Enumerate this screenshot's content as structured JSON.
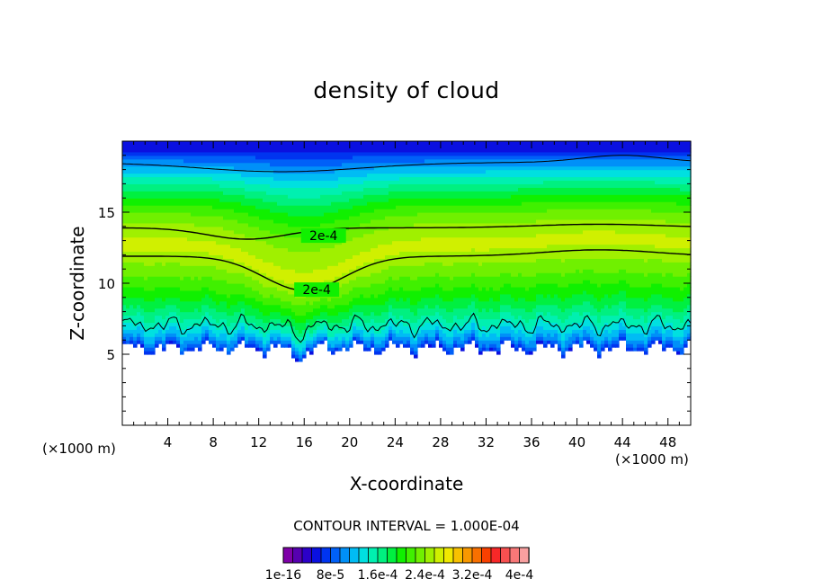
{
  "chart_data": {
    "type": "heatmap",
    "title": "density of cloud",
    "xlabel": "X-coordinate",
    "ylabel": "Z-coordinate",
    "x_unit_left": "(×1000 m)",
    "x_unit_right": "(×1000 m)",
    "xlim": [
      0,
      50
    ],
    "ylim": [
      0,
      20
    ],
    "x_ticks": [
      4,
      8,
      12,
      16,
      20,
      24,
      28,
      32,
      36,
      40,
      44,
      48
    ],
    "y_ticks": [
      5,
      10,
      15
    ],
    "contour_interval_text": "CONTOUR INTERVAL = 1.000E-04",
    "contour_labels": [
      {
        "text": "2e-4",
        "x": 17.7,
        "z": 13.35
      },
      {
        "text": "2e-4",
        "x": 17.1,
        "z": 9.55
      }
    ],
    "colorbar": {
      "colors": [
        "#7e00a8",
        "#5600b0",
        "#2c00c8",
        "#0a10e0",
        "#0034f0",
        "#0060f8",
        "#0090f8",
        "#00bcf4",
        "#00e0e0",
        "#00f0b0",
        "#00f080",
        "#00f040",
        "#10f000",
        "#40f000",
        "#70f000",
        "#a0f000",
        "#d0f000",
        "#f0e800",
        "#f8c000",
        "#f89800",
        "#f87000",
        "#f84000",
        "#f82828",
        "#f85050",
        "#f87878",
        "#f8a0a0"
      ],
      "labels": [
        "1e-16",
        "8e-5",
        "1.6e-4",
        "2.4e-4",
        "3.2e-4",
        "4e-4"
      ]
    }
  }
}
